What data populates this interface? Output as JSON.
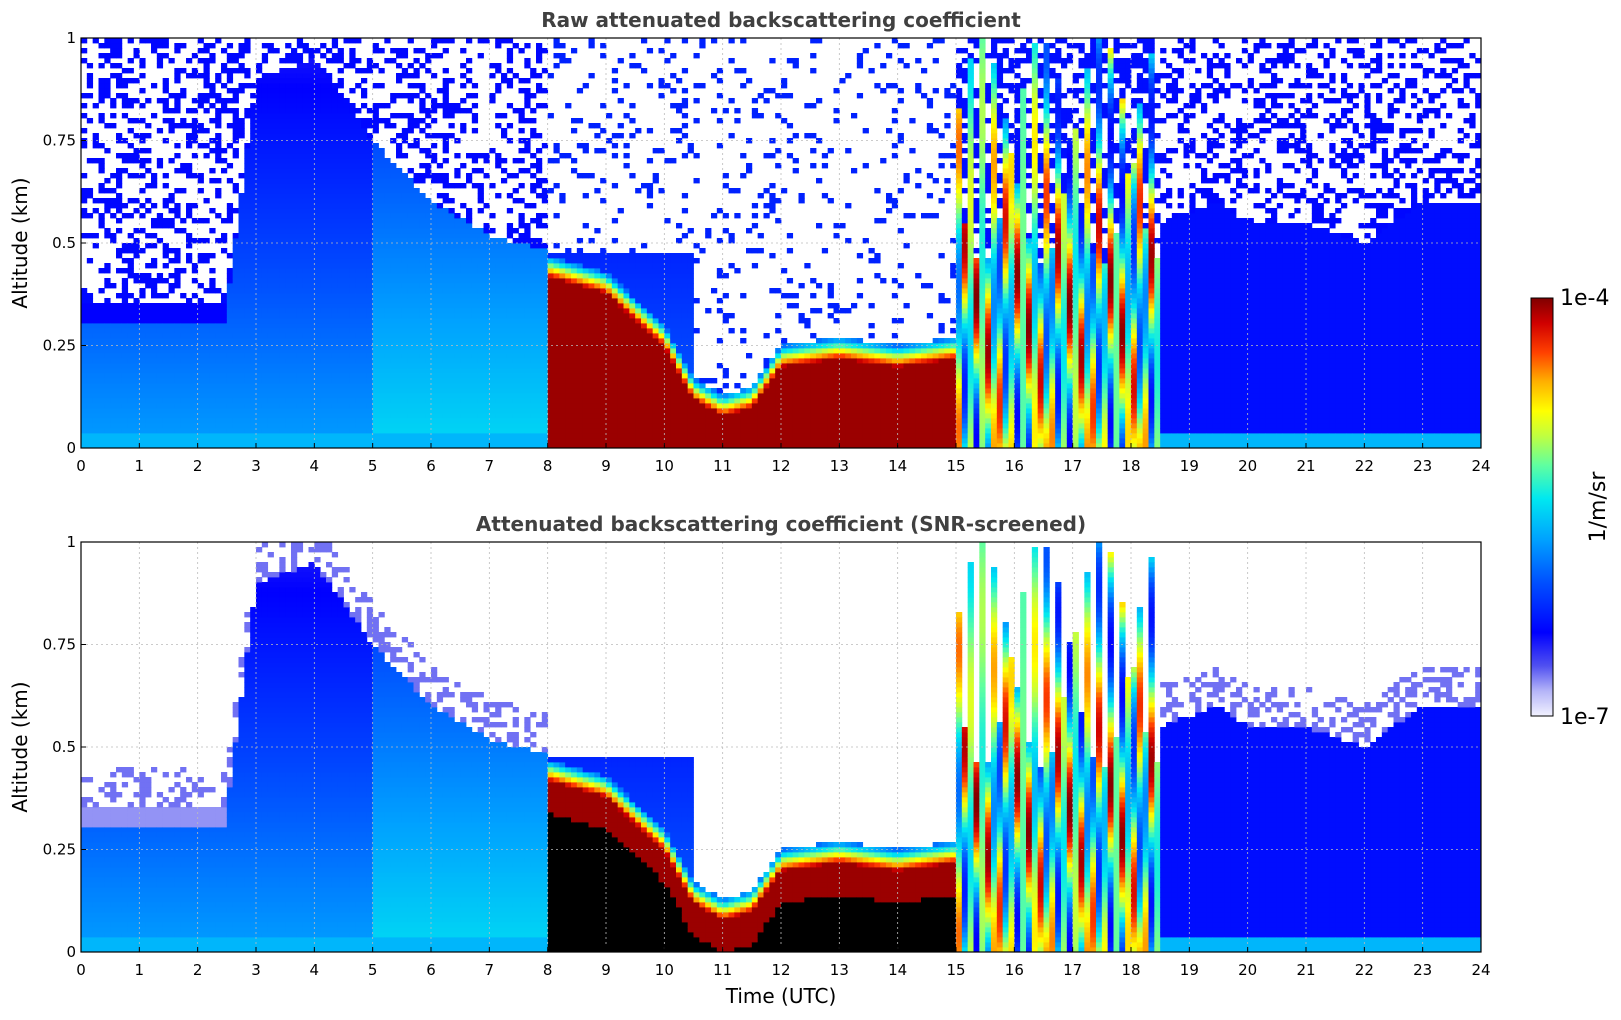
{
  "chart_data": [
    {
      "type": "heatmap",
      "title": "Raw attenuated backscattering coefficient",
      "xlabel": "",
      "ylabel": "Altitude (km)",
      "xlim": [
        0,
        24
      ],
      "ylim": [
        0,
        1
      ],
      "xticks": [
        "0",
        "1",
        "2",
        "3",
        "4",
        "5",
        "6",
        "7",
        "8",
        "9",
        "10",
        "11",
        "12",
        "13",
        "14",
        "15",
        "16",
        "17",
        "18",
        "19",
        "20",
        "21",
        "22",
        "23",
        "24"
      ],
      "yticks": [
        "0",
        "0.25",
        "0.5",
        "0.75",
        "1"
      ],
      "grid": true,
      "screened": false,
      "features": [
        {
          "name": "aerosol-layer-top",
          "hours": [
            0,
            2.5,
            3,
            4,
            5,
            6,
            7,
            8
          ],
          "altitude_km": [
            0.35,
            0.35,
            0.9,
            0.95,
            0.75,
            0.6,
            0.52,
            0.48
          ]
        },
        {
          "name": "boundary-layer-cloud-top",
          "hours": [
            8,
            9,
            10,
            10.5,
            11,
            11.5,
            12,
            13,
            14,
            15
          ],
          "altitude_km": [
            0.42,
            0.38,
            0.25,
            0.12,
            0.08,
            0.1,
            0.2,
            0.22,
            0.2,
            0.22
          ]
        },
        {
          "name": "convective-cloud-region",
          "hours": [
            15,
            18.5
          ],
          "altitude_km": [
            0,
            1
          ]
        }
      ]
    },
    {
      "type": "heatmap",
      "title": "Attenuated backscattering coefficient (SNR-screened)",
      "xlabel": "Time (UTC)",
      "ylabel": "Altitude (km)",
      "xlim": [
        0,
        24
      ],
      "ylim": [
        0,
        1
      ],
      "xticks": [
        "0",
        "1",
        "2",
        "3",
        "4",
        "5",
        "6",
        "7",
        "8",
        "9",
        "10",
        "11",
        "12",
        "13",
        "14",
        "15",
        "16",
        "17",
        "18",
        "19",
        "20",
        "21",
        "22",
        "23",
        "24"
      ],
      "yticks": [
        "0",
        "0.25",
        "0.5",
        "0.75",
        "1"
      ],
      "grid": true,
      "screened": true
    }
  ],
  "colorbar": {
    "label": "1/m/sr",
    "max_label": "1e-4",
    "min_label": "1e-7",
    "scale": "log",
    "colormap": "jet"
  }
}
